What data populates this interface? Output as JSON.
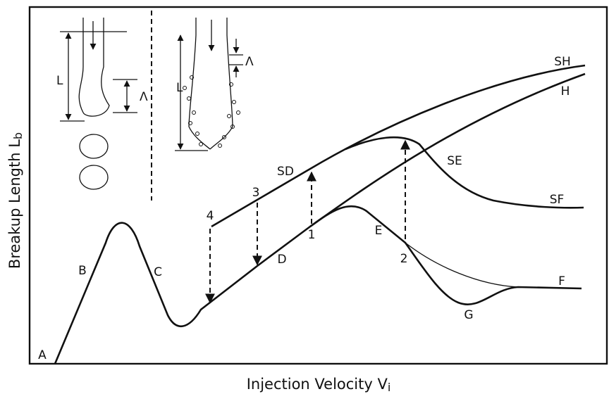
{
  "axes": {
    "x_label": {
      "text": "Injection Velocity V",
      "subscript": "i"
    },
    "y_label": {
      "text": "Breakup Length L",
      "subscript": "b"
    }
  },
  "curve_labels": [
    "A",
    "B",
    "C",
    "D",
    "1",
    "E",
    "2",
    "G",
    "F",
    "4",
    "3",
    "SD",
    "SE",
    "SF",
    "SH",
    "H"
  ],
  "inset_labels": [
    "L",
    "Λ",
    "L",
    "Λ"
  ]
}
